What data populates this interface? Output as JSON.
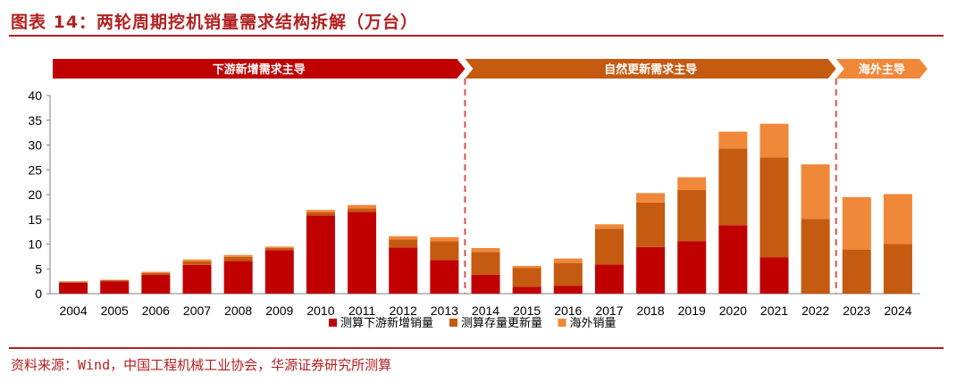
{
  "header": {
    "title": "图表 14：两轮周期挖机销量需求结构拆解（万台）"
  },
  "footer": {
    "source": "资料来源：Wind，中国工程机械工业协会，华源证券研究所测算"
  },
  "colors": {
    "accent": "#b22020",
    "series_new": "#c00000",
    "series_replacement": "#c55a11",
    "series_overseas": "#f0883a",
    "phase_1": "#c00000",
    "phase_2": "#c55a11",
    "phase_3": "#f0883a"
  },
  "chart_data": {
    "type": "bar",
    "stacked": true,
    "categories": [
      "2004",
      "2005",
      "2006",
      "2007",
      "2008",
      "2009",
      "2010",
      "2011",
      "2012",
      "2013",
      "2014",
      "2015",
      "2016",
      "2017",
      "2018",
      "2019",
      "2020",
      "2021",
      "2022",
      "2023",
      "2024"
    ],
    "series": [
      {
        "name": "测算下游新增销量",
        "values": [
          2.2,
          2.5,
          3.8,
          5.8,
          6.6,
          8.8,
          15.8,
          16.5,
          9.3,
          6.8,
          3.8,
          1.4,
          1.6,
          5.9,
          9.4,
          10.6,
          13.8,
          7.3,
          0,
          0,
          0
        ]
      },
      {
        "name": "测算存量更新量",
        "values": [
          0.2,
          0.2,
          0.4,
          0.7,
          0.8,
          0.4,
          0.6,
          0.7,
          1.6,
          3.8,
          4.6,
          3.8,
          4.6,
          7.2,
          9.0,
          10.3,
          15.5,
          20.2,
          15.1,
          8.9,
          10.0
        ]
      },
      {
        "name": "海外销量",
        "values": [
          0.1,
          0.1,
          0.2,
          0.4,
          0.4,
          0.3,
          0.5,
          0.7,
          0.7,
          0.8,
          0.8,
          0.4,
          0.9,
          0.9,
          1.9,
          2.6,
          3.4,
          6.8,
          11.0,
          10.6,
          10.1
        ]
      }
    ],
    "ylim": [
      0,
      40
    ],
    "yticks": [
      0,
      5,
      10,
      15,
      20,
      25,
      30,
      35,
      40
    ],
    "xlabel": "",
    "ylabel": "",
    "legend_position": "bottom",
    "phases": [
      {
        "label": "下游新增需求主导",
        "start": "2004",
        "end": "2013"
      },
      {
        "label": "自然更新需求主导",
        "start": "2014",
        "end": "2022"
      },
      {
        "label": "海外主导",
        "start": "2023",
        "end": "2024"
      }
    ]
  }
}
